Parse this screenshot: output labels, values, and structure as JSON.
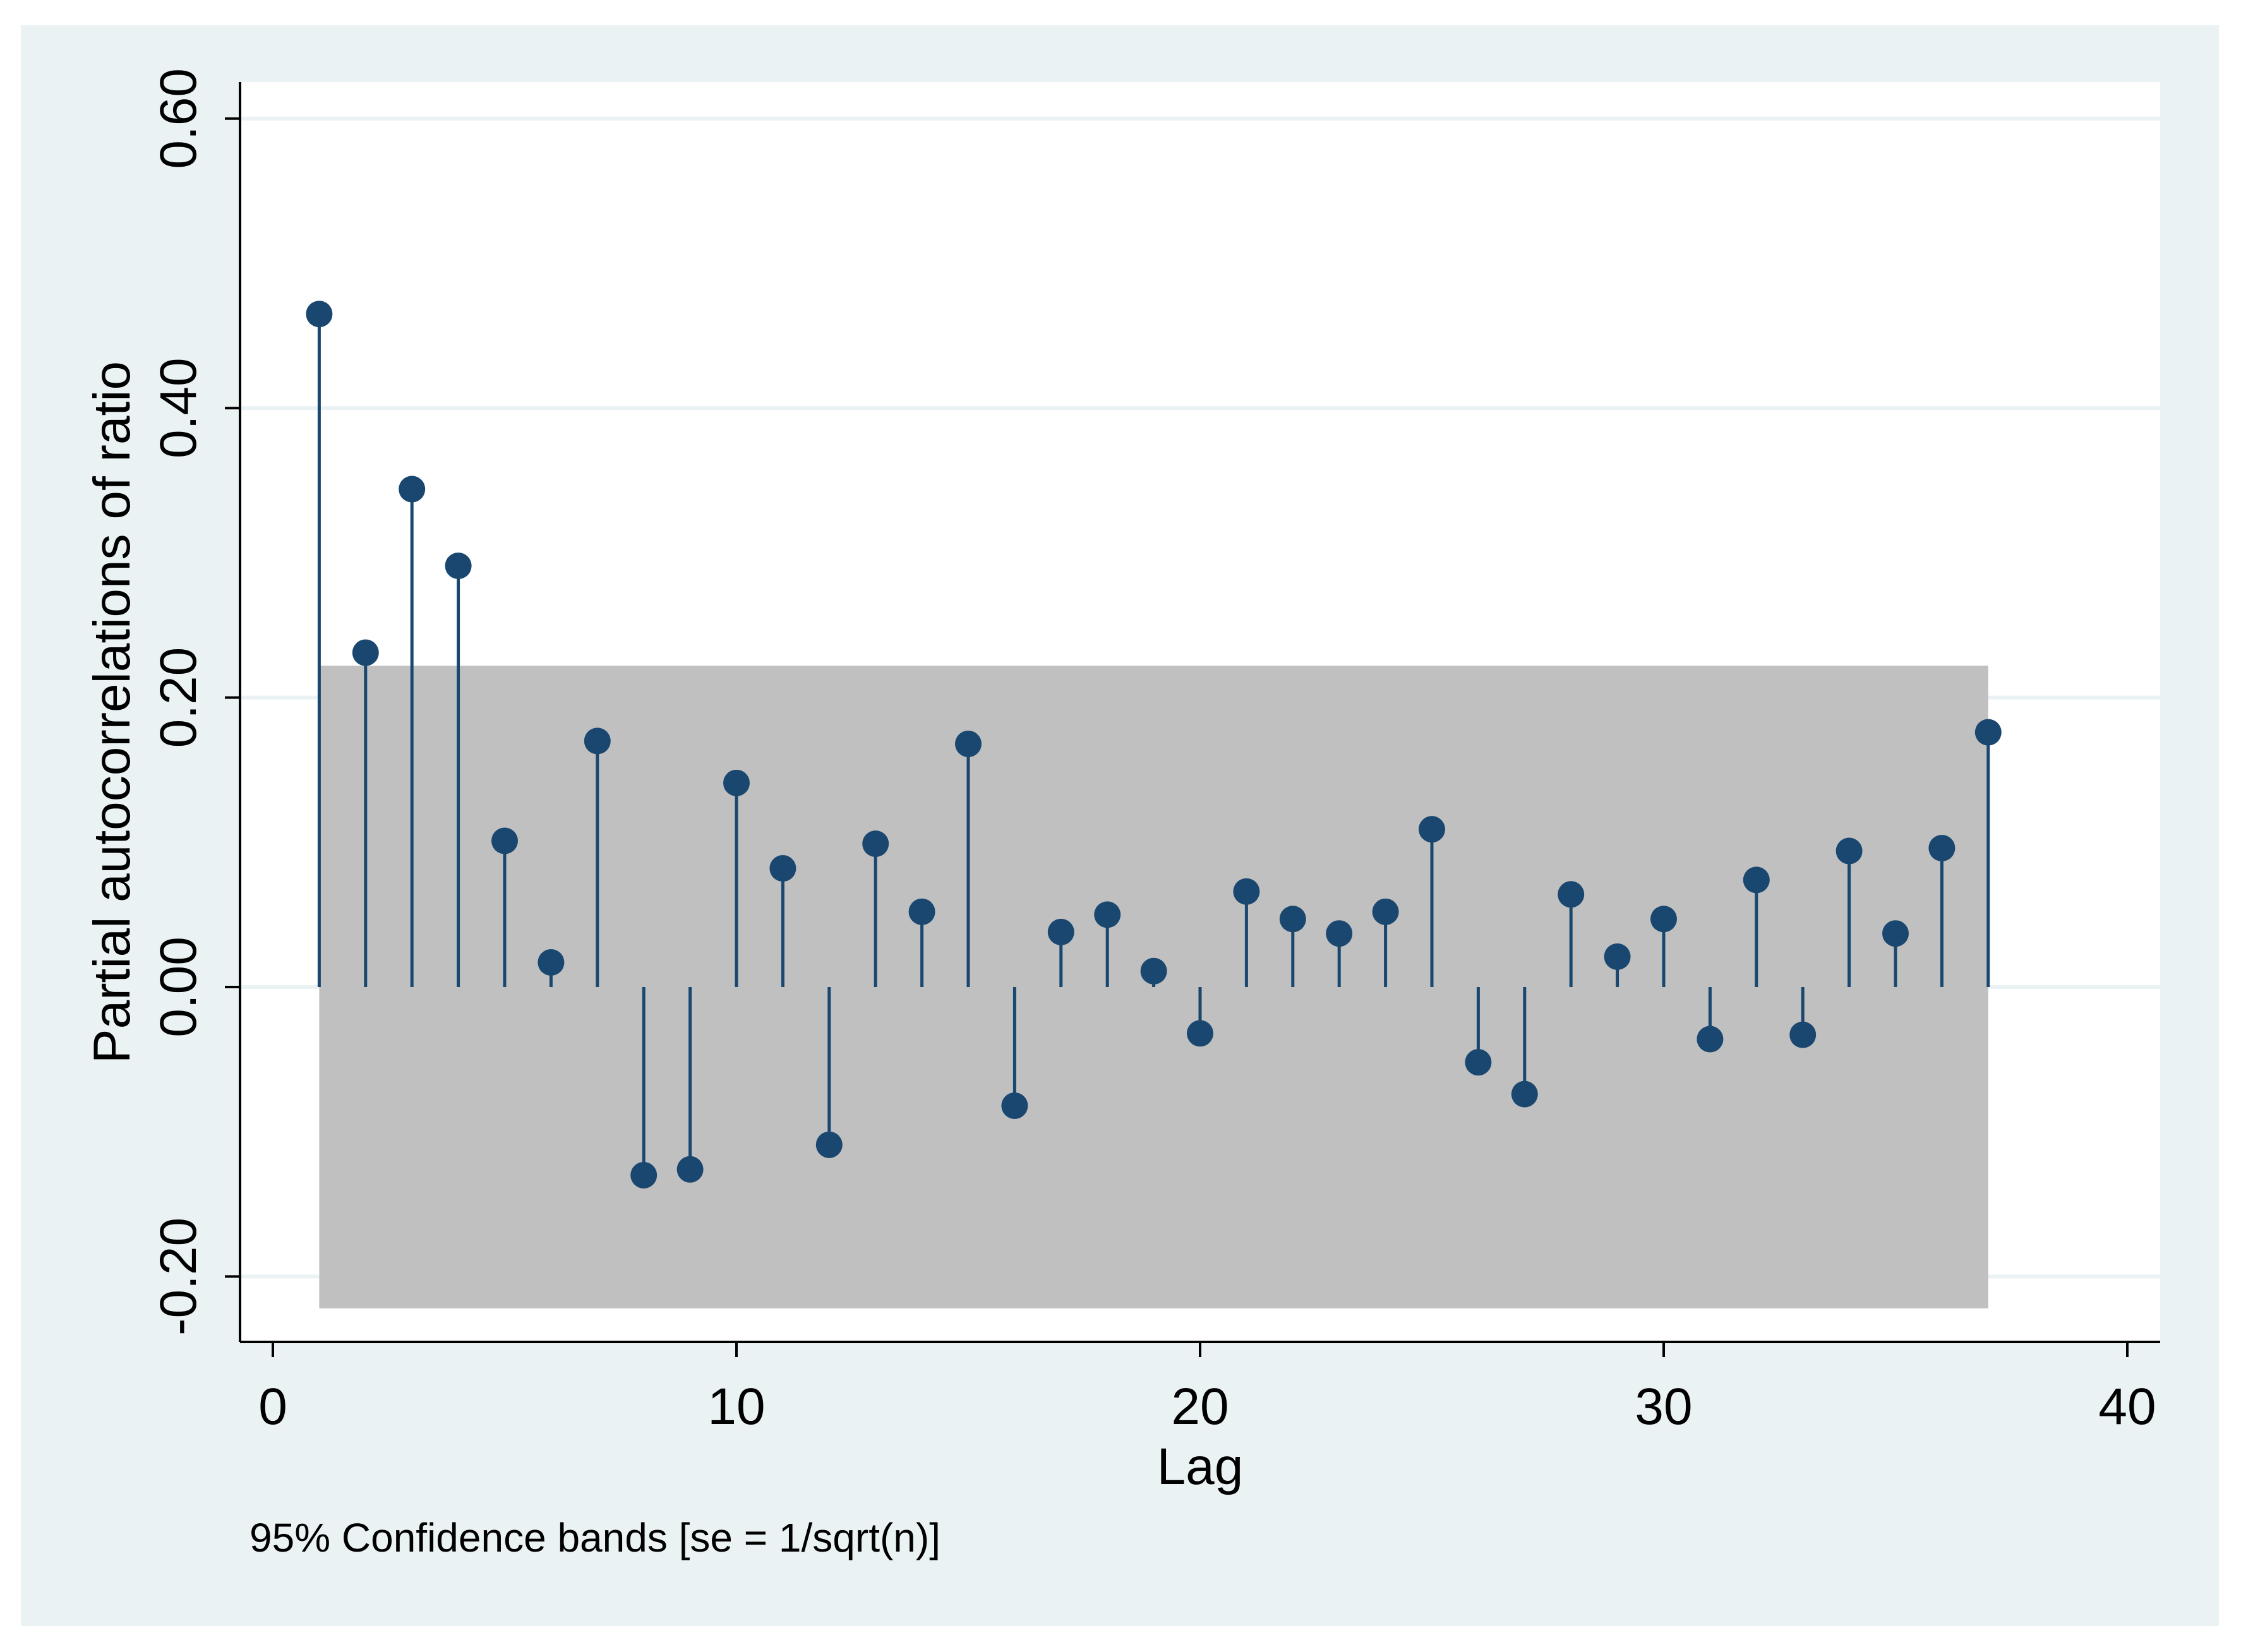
{
  "chart_data": {
    "type": "stem",
    "title": "",
    "xlabel": "Lag",
    "ylabel": "Partial autocorrelations of ratio",
    "note": "95% Confidence bands [se = 1/sqrt(n)]",
    "xlim": [
      0,
      40
    ],
    "ylim": [
      -0.245,
      0.62
    ],
    "xticks": [
      0,
      10,
      20,
      30,
      40
    ],
    "xtick_labels": [
      "0",
      "10",
      "20",
      "30",
      "40"
    ],
    "yticks": [
      -0.2,
      0.0,
      0.2,
      0.4,
      0.6
    ],
    "ytick_labels": [
      "-0.20",
      "0.00",
      "0.20",
      "0.40",
      "0.60"
    ],
    "grid": true,
    "confidence_band": {
      "from_lag": 1,
      "to_lag": 37,
      "lower": -0.222,
      "upper": 0.222
    },
    "series": [
      {
        "name": "PACF",
        "x": [
          1,
          2,
          3,
          4,
          5,
          6,
          7,
          8,
          9,
          10,
          11,
          12,
          13,
          14,
          15,
          16,
          17,
          18,
          19,
          20,
          21,
          22,
          23,
          24,
          25,
          26,
          27,
          28,
          29,
          30,
          31,
          32,
          33,
          34,
          35,
          36,
          37
        ],
        "values": [
          0.465,
          0.231,
          0.344,
          0.291,
          0.101,
          0.017,
          0.17,
          -0.13,
          -0.126,
          0.141,
          0.082,
          -0.109,
          0.099,
          0.052,
          0.168,
          -0.082,
          0.038,
          0.05,
          0.011,
          -0.032,
          0.066,
          0.047,
          0.037,
          0.052,
          0.109,
          -0.052,
          -0.074,
          0.064,
          0.021,
          0.047,
          -0.036,
          0.074,
          -0.033,
          0.094,
          0.037,
          0.096,
          0.176
        ]
      }
    ],
    "colors": {
      "outer_background": "#eaf2f3",
      "plot_background": "#ffffff",
      "band_fill": "#c0c0c0",
      "marker": "#1a476f",
      "gridline": "#eaf2f3",
      "axis": "#000000"
    }
  }
}
